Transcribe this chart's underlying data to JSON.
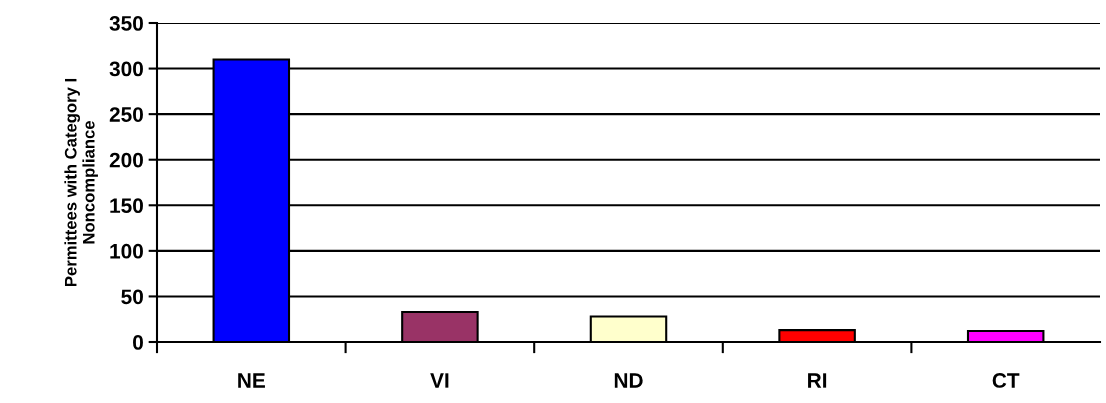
{
  "chart_data": {
    "type": "bar",
    "ylabel": "Permittees with Category I\nNoncompliance",
    "categories": [
      "NE",
      "VI",
      "ND",
      "RI",
      "CT"
    ],
    "values": [
      310,
      33,
      28,
      13,
      12
    ],
    "colors": [
      "#0000ff",
      "#993366",
      "#ffffcc",
      "#ff0000",
      "#ff00ff"
    ],
    "ylim": [
      0,
      350
    ],
    "yticks": [
      0,
      50,
      100,
      150,
      200,
      250,
      300,
      350
    ],
    "grid": "y"
  }
}
